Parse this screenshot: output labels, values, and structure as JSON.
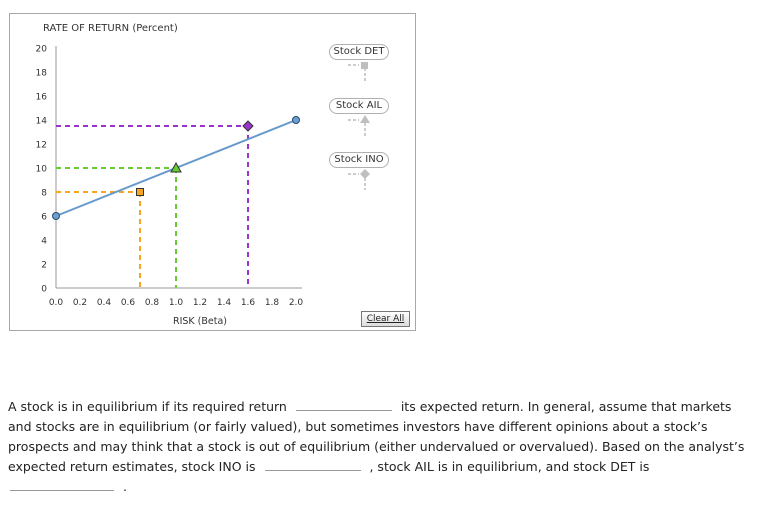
{
  "chart_data": {
    "type": "line",
    "title": "",
    "ylabel": "RATE OF RETURN (Percent)",
    "xlabel": "RISK (Beta)",
    "xlim": [
      0,
      2.0
    ],
    "ylim": [
      0,
      20
    ],
    "xticks": [
      "0.0",
      "0.2",
      "0.4",
      "0.6",
      "0.8",
      "1.0",
      "1.2",
      "1.4",
      "1.6",
      "1.8",
      "2.0"
    ],
    "yticks": [
      "0",
      "2",
      "4",
      "6",
      "8",
      "10",
      "12",
      "14",
      "16",
      "18",
      "20"
    ],
    "series": [
      {
        "name": "",
        "type": "line",
        "color": "#6699cc",
        "x": [
          0.0,
          2.0
        ],
        "y": [
          6.0,
          14.0
        ]
      }
    ],
    "points": [
      {
        "series": "Stock DET",
        "shape": "square",
        "color": "#f5a623",
        "x": 0.7,
        "y": 8.0
      },
      {
        "series": "Stock AIL",
        "shape": "triangle",
        "color": "#66cc33",
        "x": 1.0,
        "y": 10.0
      },
      {
        "series": "Stock INO",
        "shape": "diamond",
        "color": "#9933cc",
        "x": 1.6,
        "y": 13.5
      }
    ],
    "endpoints": [
      {
        "x": 0.0,
        "y": 6.0
      },
      {
        "x": 2.0,
        "y": 14.0
      }
    ],
    "grid": false
  },
  "tools": [
    {
      "label": "Stock DET",
      "icon": "square-icon"
    },
    {
      "label": "Stock AIL",
      "icon": "triangle-icon"
    },
    {
      "label": "Stock INO",
      "icon": "diamond-icon"
    }
  ],
  "clear_label": "Clear All",
  "question": {
    "part1": "A stock is in equilibrium if its required return",
    "part2": "its expected return. In general, assume that markets and stocks are in equilibrium (or fairly valued), but sometimes investors have different opinions about a stock’s prospects and may think that a stock is out of equilibrium (either undervalued or overvalued). Based on the analyst’s expected return estimates, stock INO is",
    "part3": ", stock AIL is in equilibrium, and stock DET is",
    "part4": "."
  }
}
